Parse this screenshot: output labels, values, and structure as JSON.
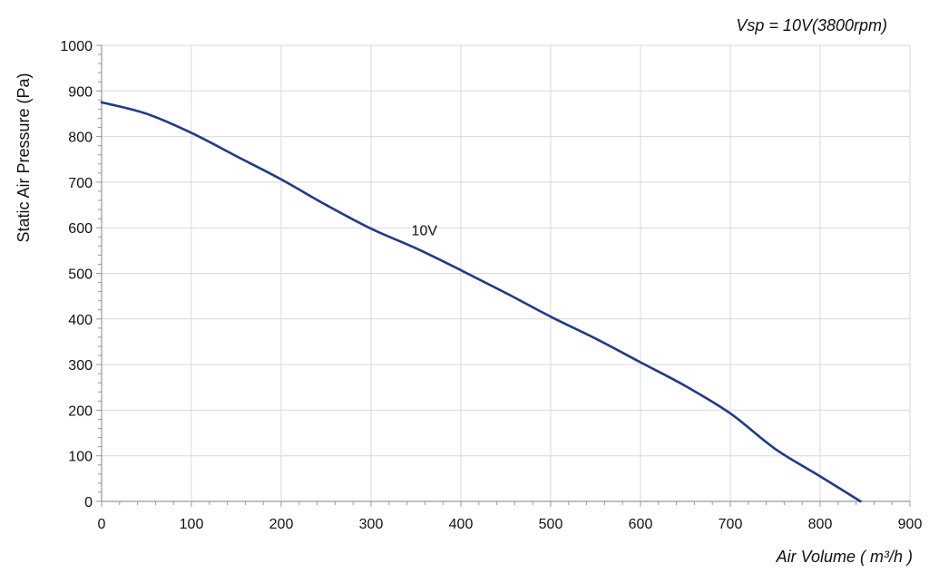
{
  "chart_data": {
    "type": "line",
    "title": "",
    "condition_label": "Vsp = 10V(3800rpm)",
    "xlabel": "Air Volume ( m³/h )",
    "ylabel": "Static Air Pressure  (Pa)",
    "xlim": [
      0,
      900
    ],
    "ylim": [
      0,
      1000
    ],
    "x_ticks": [
      0,
      100,
      200,
      300,
      400,
      500,
      600,
      700,
      800,
      900
    ],
    "y_ticks": [
      0,
      100,
      200,
      300,
      400,
      500,
      600,
      700,
      800,
      900,
      1000
    ],
    "grid": true,
    "series": [
      {
        "name": "10V",
        "color": "#1f3a8a",
        "x": [
          0,
          50,
          100,
          150,
          200,
          250,
          300,
          350,
          400,
          450,
          500,
          550,
          600,
          650,
          700,
          750,
          800,
          845
        ],
        "y": [
          875,
          850,
          808,
          757,
          706,
          650,
          598,
          555,
          507,
          457,
          405,
          357,
          305,
          253,
          193,
          115,
          55,
          0
        ]
      }
    ]
  }
}
